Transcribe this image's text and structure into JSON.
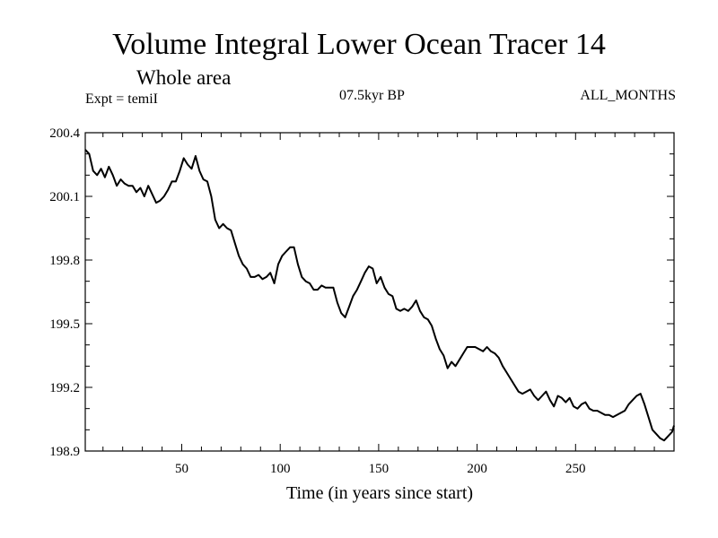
{
  "chart_data": {
    "type": "line",
    "title": "Volume Integral Lower Ocean Tracer 14",
    "subtitle": "Whole area",
    "experiment_label": "Expt = temiI",
    "period_label": "07.5kyr BP",
    "months_label": "ALL_MONTHS",
    "xlabel": "Time (in years since start)",
    "ylabel": "",
    "xlim": [
      1,
      300
    ],
    "ylim": [
      198.9,
      200.4
    ],
    "xticks": [
      50,
      100,
      150,
      200,
      250
    ],
    "yticks": [
      198.9,
      199.2,
      199.5,
      199.8,
      200.1,
      200.4
    ],
    "ytick_labels": [
      "198.9",
      "199.2",
      "199.5",
      "199.8",
      "200.1",
      "200.4"
    ],
    "grid": false,
    "series": [
      {
        "name": "Lower Ocean Tracer 14",
        "x": [
          1,
          3,
          5,
          7,
          9,
          11,
          13,
          15,
          17,
          19,
          21,
          23,
          25,
          27,
          29,
          31,
          33,
          35,
          37,
          39,
          41,
          43,
          45,
          47,
          49,
          51,
          53,
          55,
          57,
          59,
          61,
          63,
          65,
          67,
          69,
          71,
          73,
          75,
          77,
          79,
          81,
          83,
          85,
          87,
          89,
          91,
          93,
          95,
          97,
          99,
          101,
          103,
          105,
          107,
          109,
          111,
          113,
          115,
          117,
          119,
          121,
          123,
          125,
          127,
          129,
          131,
          133,
          135,
          137,
          139,
          141,
          143,
          145,
          147,
          149,
          151,
          153,
          155,
          157,
          159,
          161,
          163,
          165,
          167,
          169,
          171,
          173,
          175,
          177,
          179,
          181,
          183,
          185,
          187,
          189,
          191,
          193,
          195,
          197,
          199,
          201,
          203,
          205,
          207,
          209,
          211,
          213,
          215,
          217,
          219,
          221,
          223,
          225,
          227,
          229,
          231,
          233,
          235,
          237,
          239,
          241,
          243,
          245,
          247,
          249,
          251,
          253,
          255,
          257,
          259,
          261,
          263,
          265,
          267,
          269,
          271,
          273,
          275,
          277,
          279,
          281,
          283,
          285,
          287,
          289,
          291,
          293,
          295,
          297,
          299,
          300
        ],
        "values": [
          200.32,
          200.3,
          200.22,
          200.2,
          200.23,
          200.19,
          200.24,
          200.2,
          200.15,
          200.18,
          200.16,
          200.15,
          200.15,
          200.12,
          200.14,
          200.1,
          200.15,
          200.11,
          200.07,
          200.08,
          200.1,
          200.13,
          200.17,
          200.17,
          200.22,
          200.28,
          200.25,
          200.23,
          200.29,
          200.22,
          200.18,
          200.17,
          200.1,
          199.99,
          199.95,
          199.97,
          199.95,
          199.94,
          199.88,
          199.82,
          199.78,
          199.76,
          199.72,
          199.72,
          199.73,
          199.71,
          199.72,
          199.74,
          199.69,
          199.78,
          199.82,
          199.84,
          199.86,
          199.86,
          199.78,
          199.72,
          199.7,
          199.69,
          199.66,
          199.66,
          199.68,
          199.67,
          199.67,
          199.67,
          199.6,
          199.55,
          199.53,
          199.58,
          199.63,
          199.66,
          199.7,
          199.74,
          199.77,
          199.76,
          199.69,
          199.72,
          199.67,
          199.64,
          199.63,
          199.57,
          199.56,
          199.57,
          199.56,
          199.58,
          199.61,
          199.56,
          199.53,
          199.52,
          199.49,
          199.43,
          199.38,
          199.35,
          199.29,
          199.32,
          199.3,
          199.33,
          199.36,
          199.39,
          199.39,
          199.39,
          199.38,
          199.37,
          199.39,
          199.37,
          199.36,
          199.34,
          199.3,
          199.27,
          199.24,
          199.21,
          199.18,
          199.17,
          199.18,
          199.19,
          199.16,
          199.14,
          199.16,
          199.18,
          199.14,
          199.11,
          199.16,
          199.15,
          199.13,
          199.15,
          199.11,
          199.1,
          199.12,
          199.13,
          199.1,
          199.09,
          199.09,
          199.08,
          199.07,
          199.07,
          199.06,
          199.07,
          199.08,
          199.09,
          199.12,
          199.14,
          199.16,
          199.17,
          199.12,
          199.06,
          199.0,
          198.98,
          198.96,
          198.95,
          198.97,
          198.99,
          199.02
        ]
      }
    ]
  }
}
